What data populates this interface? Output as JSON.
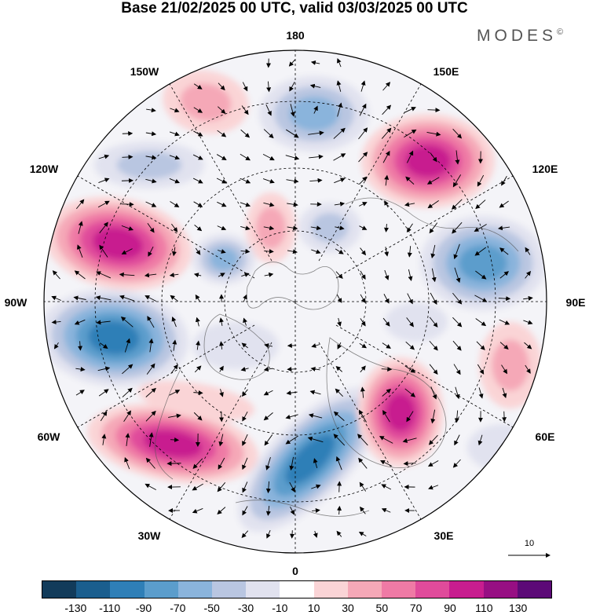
{
  "title": "Base 21/02/2025 00 UTC, valid 03/03/2025 00 UTC",
  "brand": "MODES",
  "brand_mark": "©",
  "longitude_labels": {
    "n180": "180",
    "e150": "150E",
    "e120": "120E",
    "e90": "90E",
    "e60": "60E",
    "e30": "30E",
    "s0": "0",
    "w30": "30W",
    "w60": "60W",
    "w90": "90W",
    "w120": "120W",
    "w150": "150W"
  },
  "vector_scale_label": "10",
  "colorbar": {
    "colors": [
      "#123b5a",
      "#1a5e8e",
      "#2f7fb7",
      "#5b9dcc",
      "#8ab4dc",
      "#b9c6e1",
      "#e1e2ef",
      "#ffffff",
      "#fad4d6",
      "#f5a8b7",
      "#ef7aa5",
      "#e04b9b",
      "#c81d8f",
      "#970f83",
      "#5c0a77"
    ],
    "tick_labels": [
      "-130",
      "-110",
      "-90",
      "-70",
      "-50",
      "-30",
      "-10",
      "10",
      "30",
      "50",
      "70",
      "90",
      "110",
      "130"
    ]
  },
  "anomaly_colors": {
    "neg_strong": "#2f7fb7",
    "neg_medium": "#5b9dcc",
    "neg_light": "#8ab4dc",
    "neg_faint": "#b9c6e1",
    "neg_trace": "#e1e2ef",
    "pos_trace": "#fad4d6",
    "pos_light": "#f5a8b7",
    "pos_medium": "#ef7aa5",
    "pos_strong": "#e04b9b",
    "pos_max": "#c81d8f"
  }
}
